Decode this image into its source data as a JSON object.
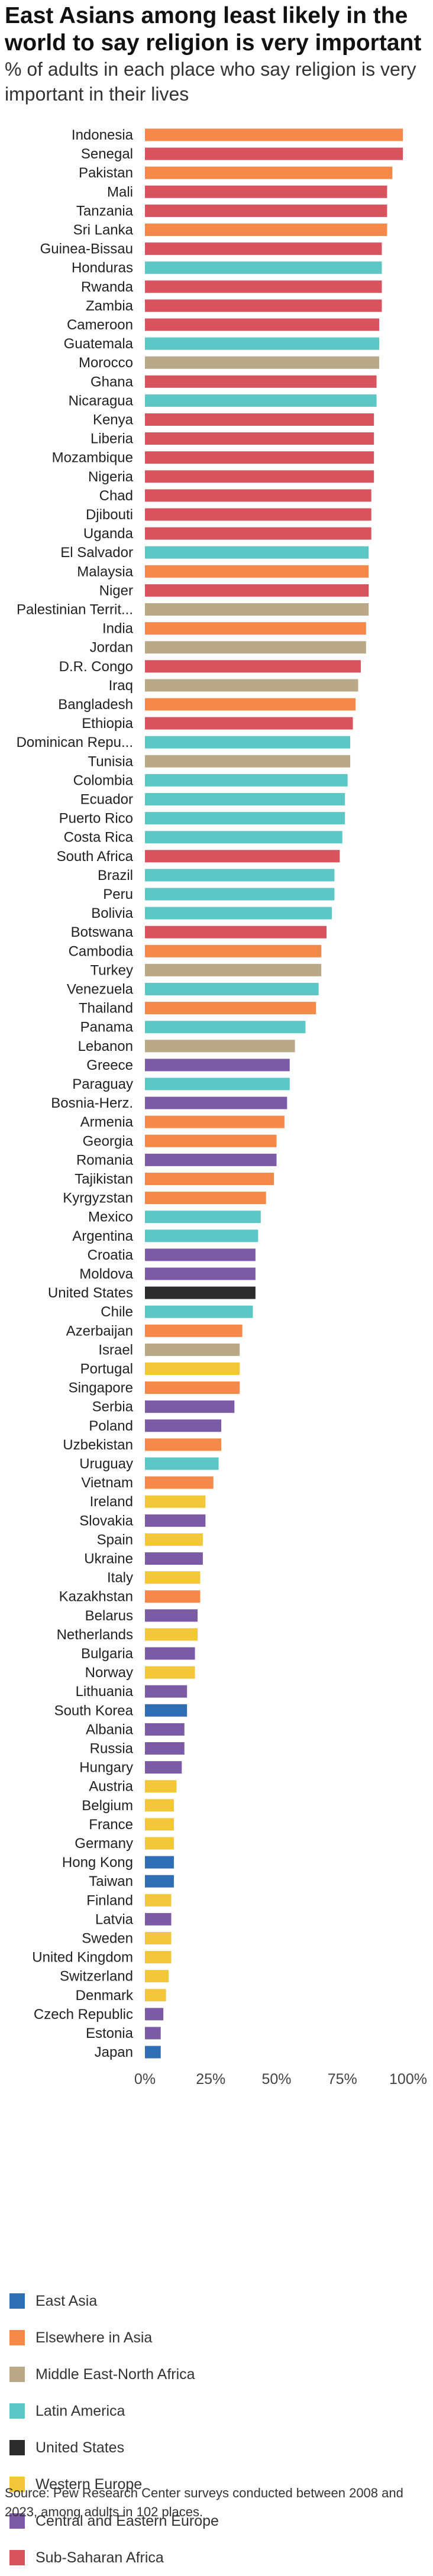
{
  "title": "East Asians among least likely in the world to say religion is very important",
  "subtitle": "% of adults in each place who say religion is very important in their lives",
  "source": "Source: Pew Research Center surveys conducted between 2008 and 2023, among adults in 102 places.",
  "colors": {
    "East Asia": "#2f6db5",
    "Elsewhere in Asia": "#f5894a",
    "Middle East-North Africa": "#b9a988",
    "Latin America": "#5cc7c5",
    "United States": "#2b2b2b",
    "Western Europe": "#f3c73a",
    "Central and Eastern Europe": "#7b5aa6",
    "Sub-Saharan Africa": "#d9535f"
  },
  "legend": [
    {
      "label": "East Asia",
      "color": "#2f6db5"
    },
    {
      "label": "Elsewhere in Asia",
      "color": "#f5894a"
    },
    {
      "label": "Middle East-North Africa",
      "color": "#b9a988"
    },
    {
      "label": "Latin America",
      "color": "#5cc7c5"
    },
    {
      "label": "United States",
      "color": "#2b2b2b"
    },
    {
      "label": "Western Europe",
      "color": "#f3c73a"
    },
    {
      "label": "Central and Eastern Europe",
      "color": "#7b5aa6"
    },
    {
      "label": "Sub-Saharan Africa",
      "color": "#d9535f"
    }
  ],
  "chart_data": {
    "type": "bar",
    "orientation": "horizontal",
    "xlim": [
      0,
      100
    ],
    "xticks": [
      "0%",
      "25%",
      "50%",
      "75%",
      "100%"
    ],
    "grid": false,
    "legend_placement": "bottom",
    "bars": [
      {
        "label": "Indonesia",
        "value": 98,
        "region": "Elsewhere in Asia"
      },
      {
        "label": "Senegal",
        "value": 98,
        "region": "Sub-Saharan Africa"
      },
      {
        "label": "Pakistan",
        "value": 94,
        "region": "Elsewhere in Asia"
      },
      {
        "label": "Mali",
        "value": 92,
        "region": "Sub-Saharan Africa"
      },
      {
        "label": "Tanzania",
        "value": 92,
        "region": "Sub-Saharan Africa"
      },
      {
        "label": "Sri Lanka",
        "value": 92,
        "region": "Elsewhere in Asia"
      },
      {
        "label": "Guinea-Bissau",
        "value": 90,
        "region": "Sub-Saharan Africa"
      },
      {
        "label": "Honduras",
        "value": 90,
        "region": "Latin America"
      },
      {
        "label": "Rwanda",
        "value": 90,
        "region": "Sub-Saharan Africa"
      },
      {
        "label": "Zambia",
        "value": 90,
        "region": "Sub-Saharan Africa"
      },
      {
        "label": "Cameroon",
        "value": 89,
        "region": "Sub-Saharan Africa"
      },
      {
        "label": "Guatemala",
        "value": 89,
        "region": "Latin America"
      },
      {
        "label": "Morocco",
        "value": 89,
        "region": "Middle East-North Africa"
      },
      {
        "label": "Ghana",
        "value": 88,
        "region": "Sub-Saharan Africa"
      },
      {
        "label": "Nicaragua",
        "value": 88,
        "region": "Latin America"
      },
      {
        "label": "Kenya",
        "value": 87,
        "region": "Sub-Saharan Africa"
      },
      {
        "label": "Liberia",
        "value": 87,
        "region": "Sub-Saharan Africa"
      },
      {
        "label": "Mozambique",
        "value": 87,
        "region": "Sub-Saharan Africa"
      },
      {
        "label": "Nigeria",
        "value": 87,
        "region": "Sub-Saharan Africa"
      },
      {
        "label": "Chad",
        "value": 86,
        "region": "Sub-Saharan Africa"
      },
      {
        "label": "Djibouti",
        "value": 86,
        "region": "Sub-Saharan Africa"
      },
      {
        "label": "Uganda",
        "value": 86,
        "region": "Sub-Saharan Africa"
      },
      {
        "label": "El Salvador",
        "value": 85,
        "region": "Latin America"
      },
      {
        "label": "Malaysia",
        "value": 85,
        "region": "Elsewhere in Asia"
      },
      {
        "label": "Niger",
        "value": 85,
        "region": "Sub-Saharan Africa"
      },
      {
        "label": "Palestinian Territ...",
        "value": 85,
        "region": "Middle East-North Africa"
      },
      {
        "label": "India",
        "value": 84,
        "region": "Elsewhere in Asia"
      },
      {
        "label": "Jordan",
        "value": 84,
        "region": "Middle East-North Africa"
      },
      {
        "label": "D.R. Congo",
        "value": 82,
        "region": "Sub-Saharan Africa"
      },
      {
        "label": "Iraq",
        "value": 81,
        "region": "Middle East-North Africa"
      },
      {
        "label": "Bangladesh",
        "value": 80,
        "region": "Elsewhere in Asia"
      },
      {
        "label": "Ethiopia",
        "value": 79,
        "region": "Sub-Saharan Africa"
      },
      {
        "label": "Dominican Repu...",
        "value": 78,
        "region": "Latin America"
      },
      {
        "label": "Tunisia",
        "value": 78,
        "region": "Middle East-North Africa"
      },
      {
        "label": "Colombia",
        "value": 77,
        "region": "Latin America"
      },
      {
        "label": "Ecuador",
        "value": 76,
        "region": "Latin America"
      },
      {
        "label": "Puerto Rico",
        "value": 76,
        "region": "Latin America"
      },
      {
        "label": "Costa Rica",
        "value": 75,
        "region": "Latin America"
      },
      {
        "label": "South Africa",
        "value": 74,
        "region": "Sub-Saharan Africa"
      },
      {
        "label": "Brazil",
        "value": 72,
        "region": "Latin America"
      },
      {
        "label": "Peru",
        "value": 72,
        "region": "Latin America"
      },
      {
        "label": "Bolivia",
        "value": 71,
        "region": "Latin America"
      },
      {
        "label": "Botswana",
        "value": 69,
        "region": "Sub-Saharan Africa"
      },
      {
        "label": "Cambodia",
        "value": 67,
        "region": "Elsewhere in Asia"
      },
      {
        "label": "Turkey",
        "value": 67,
        "region": "Middle East-North Africa"
      },
      {
        "label": "Venezuela",
        "value": 66,
        "region": "Latin America"
      },
      {
        "label": "Thailand",
        "value": 65,
        "region": "Elsewhere in Asia"
      },
      {
        "label": "Panama",
        "value": 61,
        "region": "Latin America"
      },
      {
        "label": "Lebanon",
        "value": 57,
        "region": "Middle East-North Africa"
      },
      {
        "label": "Greece",
        "value": 55,
        "region": "Central and Eastern Europe"
      },
      {
        "label": "Paraguay",
        "value": 55,
        "region": "Latin America"
      },
      {
        "label": "Bosnia-Herz.",
        "value": 54,
        "region": "Central and Eastern Europe"
      },
      {
        "label": "Armenia",
        "value": 53,
        "region": "Elsewhere in Asia"
      },
      {
        "label": "Georgia",
        "value": 50,
        "region": "Elsewhere in Asia"
      },
      {
        "label": "Romania",
        "value": 50,
        "region": "Central and Eastern Europe"
      },
      {
        "label": "Tajikistan",
        "value": 49,
        "region": "Elsewhere in Asia"
      },
      {
        "label": "Kyrgyzstan",
        "value": 46,
        "region": "Elsewhere in Asia"
      },
      {
        "label": "Mexico",
        "value": 44,
        "region": "Latin America"
      },
      {
        "label": "Argentina",
        "value": 43,
        "region": "Latin America"
      },
      {
        "label": "Croatia",
        "value": 42,
        "region": "Central and Eastern Europe"
      },
      {
        "label": "Moldova",
        "value": 42,
        "region": "Central and Eastern Europe"
      },
      {
        "label": "United States",
        "value": 42,
        "region": "United States"
      },
      {
        "label": "Chile",
        "value": 41,
        "region": "Latin America"
      },
      {
        "label": "Azerbaijan",
        "value": 37,
        "region": "Elsewhere in Asia"
      },
      {
        "label": "Israel",
        "value": 36,
        "region": "Middle East-North Africa"
      },
      {
        "label": "Portugal",
        "value": 36,
        "region": "Western Europe"
      },
      {
        "label": "Singapore",
        "value": 36,
        "region": "Elsewhere in Asia"
      },
      {
        "label": "Serbia",
        "value": 34,
        "region": "Central and Eastern Europe"
      },
      {
        "label": "Poland",
        "value": 29,
        "region": "Central and Eastern Europe"
      },
      {
        "label": "Uzbekistan",
        "value": 29,
        "region": "Elsewhere in Asia"
      },
      {
        "label": "Uruguay",
        "value": 28,
        "region": "Latin America"
      },
      {
        "label": "Vietnam",
        "value": 26,
        "region": "Elsewhere in Asia"
      },
      {
        "label": "Ireland",
        "value": 23,
        "region": "Western Europe"
      },
      {
        "label": "Slovakia",
        "value": 23,
        "region": "Central and Eastern Europe"
      },
      {
        "label": "Spain",
        "value": 22,
        "region": "Western Europe"
      },
      {
        "label": "Ukraine",
        "value": 22,
        "region": "Central and Eastern Europe"
      },
      {
        "label": "Italy",
        "value": 21,
        "region": "Western Europe"
      },
      {
        "label": "Kazakhstan",
        "value": 21,
        "region": "Elsewhere in Asia"
      },
      {
        "label": "Belarus",
        "value": 20,
        "region": "Central and Eastern Europe"
      },
      {
        "label": "Netherlands",
        "value": 20,
        "region": "Western Europe"
      },
      {
        "label": "Bulgaria",
        "value": 19,
        "region": "Central and Eastern Europe"
      },
      {
        "label": "Norway",
        "value": 19,
        "region": "Western Europe"
      },
      {
        "label": "Lithuania",
        "value": 16,
        "region": "Central and Eastern Europe"
      },
      {
        "label": "South Korea",
        "value": 16,
        "region": "East Asia"
      },
      {
        "label": "Albania",
        "value": 15,
        "region": "Central and Eastern Europe"
      },
      {
        "label": "Russia",
        "value": 15,
        "region": "Central and Eastern Europe"
      },
      {
        "label": "Hungary",
        "value": 14,
        "region": "Central and Eastern Europe"
      },
      {
        "label": "Austria",
        "value": 12,
        "region": "Western Europe"
      },
      {
        "label": "Belgium",
        "value": 11,
        "region": "Western Europe"
      },
      {
        "label": "France",
        "value": 11,
        "region": "Western Europe"
      },
      {
        "label": "Germany",
        "value": 11,
        "region": "Western Europe"
      },
      {
        "label": "Hong Kong",
        "value": 11,
        "region": "East Asia"
      },
      {
        "label": "Taiwan",
        "value": 11,
        "region": "East Asia"
      },
      {
        "label": "Finland",
        "value": 10,
        "region": "Western Europe"
      },
      {
        "label": "Latvia",
        "value": 10,
        "region": "Central and Eastern Europe"
      },
      {
        "label": "Sweden",
        "value": 10,
        "region": "Western Europe"
      },
      {
        "label": "United Kingdom",
        "value": 10,
        "region": "Western Europe"
      },
      {
        "label": "Switzerland",
        "value": 9,
        "region": "Western Europe"
      },
      {
        "label": "Denmark",
        "value": 8,
        "region": "Western Europe"
      },
      {
        "label": "Czech Republic",
        "value": 7,
        "region": "Central and Eastern Europe"
      },
      {
        "label": "Estonia",
        "value": 6,
        "region": "Central and Eastern Europe"
      },
      {
        "label": "Japan",
        "value": 6,
        "region": "East Asia"
      }
    ]
  }
}
